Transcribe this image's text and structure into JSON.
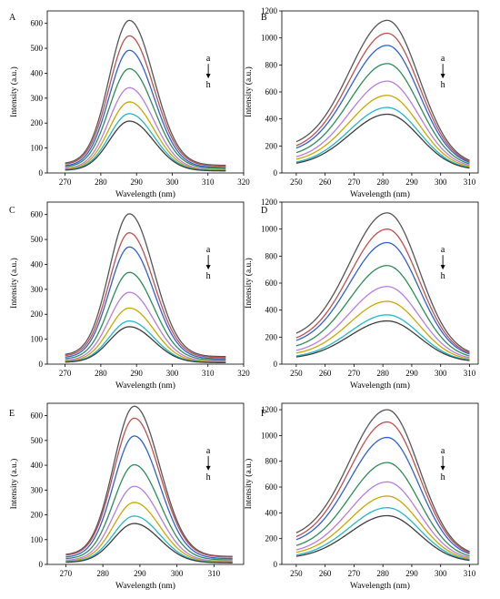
{
  "chart_data": [
    {
      "panel": "A",
      "type": "line",
      "xlabel": "Wavelength (nm)",
      "ylabel": "Intensity (a.u.)",
      "xlim": [
        265,
        320
      ],
      "ylim": [
        0,
        650
      ],
      "xticks": [
        270,
        280,
        290,
        300,
        310,
        320
      ],
      "yticks": [
        0,
        100,
        200,
        300,
        400,
        500,
        600
      ],
      "curve_x_range": [
        270,
        315
      ],
      "peak_x": 288,
      "sigma_left": 5.6,
      "sigma_right": 6.8,
      "baseline_start": [
        0.06,
        0.06,
        0.055,
        0.055,
        0.05,
        0.05,
        0.05,
        0.05
      ],
      "baseline_end": [
        0.05,
        0.05,
        0.045,
        0.045,
        0.04,
        0.04,
        0.04,
        0.04
      ],
      "annotation_top": "a",
      "annotation_bottom": "h",
      "series": [
        {
          "name": "a",
          "peak": 612,
          "color": "#555555"
        },
        {
          "name": "b",
          "peak": 550,
          "color": "#c0504d"
        },
        {
          "name": "c",
          "peak": 492,
          "color": "#2e5fd8"
        },
        {
          "name": "d",
          "peak": 418,
          "color": "#2e8b57"
        },
        {
          "name": "e",
          "peak": 342,
          "color": "#b77de0"
        },
        {
          "name": "f",
          "peak": 285,
          "color": "#c9a800"
        },
        {
          "name": "g",
          "peak": 238,
          "color": "#25b7c9"
        },
        {
          "name": "h",
          "peak": 208,
          "color": "#3d3d3d"
        }
      ]
    },
    {
      "panel": "B",
      "type": "line",
      "xlabel": "Wavelength (nm)",
      "ylabel": "Intensity (a.u.)",
      "xlim": [
        245,
        313
      ],
      "ylim": [
        0,
        1200
      ],
      "xticks": [
        250,
        260,
        270,
        280,
        290,
        300,
        310
      ],
      "yticks": [
        0,
        200,
        400,
        600,
        800,
        1000,
        1200
      ],
      "curve_x_range": [
        250,
        310
      ],
      "peak_x": 281.5,
      "sigma_left": 13,
      "sigma_right": 11,
      "baseline_start": [
        0.16,
        0.15,
        0.15,
        0.14,
        0.13,
        0.13,
        0.12,
        0.12
      ],
      "baseline_end": [
        0.05,
        0.05,
        0.05,
        0.05,
        0.05,
        0.05,
        0.05,
        0.05
      ],
      "annotation_top": "a",
      "annotation_bottom": "h",
      "series": [
        {
          "name": "a",
          "peak": 1130,
          "color": "#555555"
        },
        {
          "name": "b",
          "peak": 1035,
          "color": "#c0504d"
        },
        {
          "name": "c",
          "peak": 945,
          "color": "#2e5fd8"
        },
        {
          "name": "d",
          "peak": 810,
          "color": "#2e8b57"
        },
        {
          "name": "e",
          "peak": 680,
          "color": "#b77de0"
        },
        {
          "name": "f",
          "peak": 575,
          "color": "#c9a800"
        },
        {
          "name": "g",
          "peak": 485,
          "color": "#25b7c9"
        },
        {
          "name": "h",
          "peak": 435,
          "color": "#3d3d3d"
        }
      ]
    },
    {
      "panel": "C",
      "type": "line",
      "xlabel": "Wavelength (nm)",
      "ylabel": "Intensity (a.u.)",
      "xlim": [
        265,
        320
      ],
      "ylim": [
        0,
        650
      ],
      "xticks": [
        270,
        280,
        290,
        300,
        310,
        320
      ],
      "yticks": [
        0,
        100,
        200,
        300,
        400,
        500,
        600
      ],
      "curve_x_range": [
        270,
        315
      ],
      "peak_x": 288,
      "sigma_left": 5.6,
      "sigma_right": 6.8,
      "baseline_start": [
        0.06,
        0.06,
        0.055,
        0.055,
        0.05,
        0.05,
        0.05,
        0.05
      ],
      "baseline_end": [
        0.05,
        0.05,
        0.045,
        0.045,
        0.04,
        0.04,
        0.04,
        0.04
      ],
      "annotation_top": "a",
      "annotation_bottom": "h",
      "series": [
        {
          "name": "a",
          "peak": 603,
          "color": "#555555"
        },
        {
          "name": "b",
          "peak": 527,
          "color": "#c0504d"
        },
        {
          "name": "c",
          "peak": 470,
          "color": "#2e5fd8"
        },
        {
          "name": "d",
          "peak": 368,
          "color": "#2e8b57"
        },
        {
          "name": "e",
          "peak": 288,
          "color": "#b77de0"
        },
        {
          "name": "f",
          "peak": 225,
          "color": "#c9a800"
        },
        {
          "name": "g",
          "peak": 173,
          "color": "#25b7c9"
        },
        {
          "name": "h",
          "peak": 150,
          "color": "#3d3d3d"
        }
      ]
    },
    {
      "panel": "D",
      "type": "line",
      "xlabel": "Wavelength (nm)",
      "ylabel": "Intensity (a.u.)",
      "xlim": [
        245,
        313
      ],
      "ylim": [
        0,
        1200
      ],
      "xticks": [
        250,
        260,
        270,
        280,
        290,
        300,
        310
      ],
      "yticks": [
        0,
        200,
        400,
        600,
        800,
        1000,
        1200
      ],
      "curve_x_range": [
        250,
        310
      ],
      "peak_x": 281.5,
      "sigma_left": 13,
      "sigma_right": 11,
      "baseline_start": [
        0.16,
        0.15,
        0.15,
        0.14,
        0.13,
        0.13,
        0.12,
        0.12
      ],
      "baseline_end": [
        0.05,
        0.05,
        0.05,
        0.05,
        0.05,
        0.05,
        0.05,
        0.05
      ],
      "annotation_top": "a",
      "annotation_bottom": "h",
      "series": [
        {
          "name": "a",
          "peak": 1120,
          "color": "#555555"
        },
        {
          "name": "b",
          "peak": 1000,
          "color": "#c0504d"
        },
        {
          "name": "c",
          "peak": 900,
          "color": "#2e5fd8"
        },
        {
          "name": "d",
          "peak": 730,
          "color": "#2e8b57"
        },
        {
          "name": "e",
          "peak": 575,
          "color": "#b77de0"
        },
        {
          "name": "f",
          "peak": 465,
          "color": "#c9a800"
        },
        {
          "name": "g",
          "peak": 365,
          "color": "#25b7c9"
        },
        {
          "name": "h",
          "peak": 320,
          "color": "#3d3d3d"
        }
      ]
    },
    {
      "panel": "E",
      "type": "line",
      "xlabel": "Wavelength (nm)",
      "ylabel": "Intensity (a.u.)",
      "xlim": [
        265,
        318
      ],
      "ylim": [
        0,
        650
      ],
      "xticks": [
        270,
        280,
        290,
        300,
        310
      ],
      "yticks": [
        0,
        100,
        200,
        300,
        400,
        500,
        600
      ],
      "curve_x_range": [
        270,
        315
      ],
      "peak_x": 288.5,
      "sigma_left": 5.6,
      "sigma_right": 6.8,
      "baseline_start": [
        0.06,
        0.06,
        0.055,
        0.055,
        0.05,
        0.05,
        0.05,
        0.05
      ],
      "baseline_end": [
        0.05,
        0.05,
        0.045,
        0.045,
        0.04,
        0.04,
        0.04,
        0.04
      ],
      "annotation_top": "a",
      "annotation_bottom": "h",
      "series": [
        {
          "name": "a",
          "peak": 638,
          "color": "#555555"
        },
        {
          "name": "b",
          "peak": 590,
          "color": "#c0504d"
        },
        {
          "name": "c",
          "peak": 518,
          "color": "#2e5fd8"
        },
        {
          "name": "d",
          "peak": 402,
          "color": "#2e8b57"
        },
        {
          "name": "e",
          "peak": 315,
          "color": "#b77de0"
        },
        {
          "name": "f",
          "peak": 250,
          "color": "#c9a800"
        },
        {
          "name": "g",
          "peak": 195,
          "color": "#25b7c9"
        },
        {
          "name": "h",
          "peak": 165,
          "color": "#3d3d3d"
        }
      ]
    },
    {
      "panel": "F",
      "type": "line",
      "xlabel": "Wavelength (nm)",
      "ylabel": "Intensity (a.u.)",
      "xlim": [
        245,
        313
      ],
      "ylim": [
        0,
        1250
      ],
      "xticks": [
        250,
        260,
        270,
        280,
        290,
        300,
        310
      ],
      "yticks": [
        0,
        200,
        400,
        600,
        800,
        1000,
        1200
      ],
      "curve_x_range": [
        250,
        310
      ],
      "peak_x": 281.5,
      "sigma_left": 13,
      "sigma_right": 11,
      "baseline_start": [
        0.16,
        0.15,
        0.15,
        0.14,
        0.13,
        0.13,
        0.12,
        0.12
      ],
      "baseline_end": [
        0.05,
        0.05,
        0.05,
        0.05,
        0.05,
        0.05,
        0.05,
        0.05
      ],
      "annotation_top": "a",
      "annotation_bottom": "h",
      "series": [
        {
          "name": "a",
          "peak": 1200,
          "color": "#555555"
        },
        {
          "name": "b",
          "peak": 1105,
          "color": "#c0504d"
        },
        {
          "name": "c",
          "peak": 985,
          "color": "#2e5fd8"
        },
        {
          "name": "d",
          "peak": 790,
          "color": "#2e8b57"
        },
        {
          "name": "e",
          "peak": 640,
          "color": "#b77de0"
        },
        {
          "name": "f",
          "peak": 530,
          "color": "#c9a800"
        },
        {
          "name": "g",
          "peak": 440,
          "color": "#25b7c9"
        },
        {
          "name": "h",
          "peak": 378,
          "color": "#3d3d3d"
        }
      ]
    }
  ]
}
